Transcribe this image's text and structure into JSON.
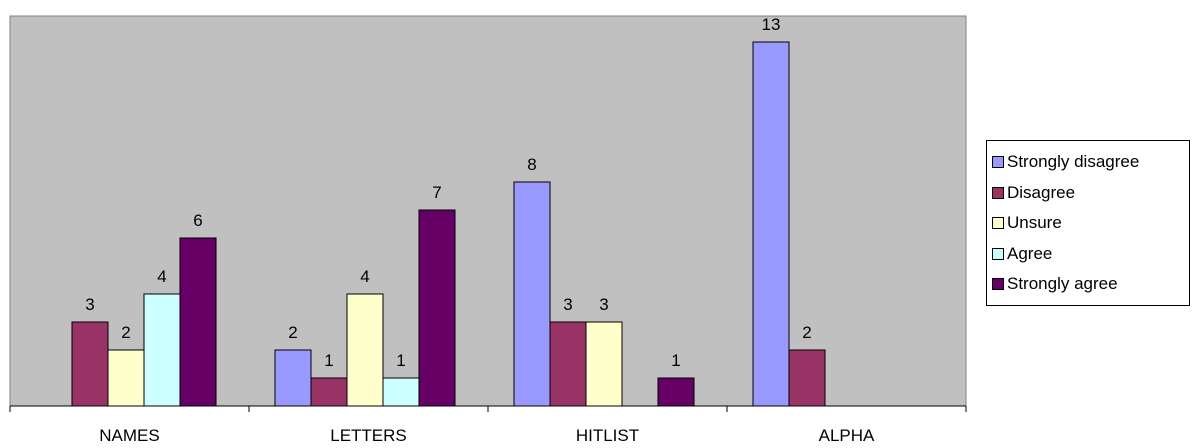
{
  "chart_data": {
    "type": "bar",
    "title": "",
    "xlabel": "",
    "ylabel": "",
    "ylim": [
      0,
      14
    ],
    "grid": false,
    "legend_position": "right",
    "plot_background": "#C0C0C0",
    "categories": [
      "NAMES",
      "LETTERS",
      "HITLIST",
      "ALPHA"
    ],
    "series": [
      {
        "name": "Strongly disagree",
        "color": "#9999FF",
        "values": [
          null,
          2,
          8,
          13
        ]
      },
      {
        "name": "Disagree",
        "color": "#993366",
        "values": [
          3,
          1,
          3,
          2
        ]
      },
      {
        "name": "Unsure",
        "color": "#FFFFCC",
        "values": [
          2,
          4,
          3,
          null
        ]
      },
      {
        "name": "Agree",
        "color": "#CCFFFF",
        "values": [
          4,
          1,
          null,
          null
        ]
      },
      {
        "name": "Strongly agree",
        "color": "#660066",
        "values": [
          6,
          7,
          1,
          null
        ]
      }
    ]
  }
}
